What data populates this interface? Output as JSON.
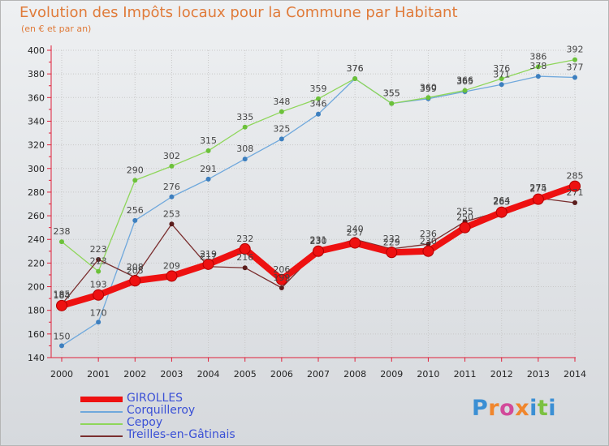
{
  "header": {
    "title": "Evolution des Impôts locaux pour la Commune par Habitant",
    "subtitle": "(en € et par an)"
  },
  "logo": {
    "text": "Proxiti",
    "letter_colors": [
      "#3b8fd4",
      "#f0862d",
      "#d24a9a",
      "#f0862d",
      "#3b8fd4",
      "#7cc142",
      "#3b8fd4"
    ]
  },
  "colors": {
    "axis": "#e0203a",
    "grid": "#c8c8c8",
    "tick_text": "#222222",
    "value_text": "#444444"
  },
  "chart_data": {
    "type": "line",
    "title": "Evolution des Impôts locaux pour la Commune par Habitant",
    "subtitle": "(en € et par an)",
    "x": [
      "2000",
      "2001",
      "2002",
      "2003",
      "2004",
      "2005",
      "2006",
      "2007",
      "2008",
      "2009",
      "2010",
      "2011",
      "2012",
      "2013",
      "2014"
    ],
    "ylim": [
      140,
      400
    ],
    "yticks": [
      140,
      160,
      180,
      200,
      220,
      240,
      260,
      280,
      300,
      320,
      340,
      360,
      380,
      400
    ],
    "grid": true,
    "legend_position": "bottom-left",
    "series": [
      {
        "name": "GIROLLES",
        "color": "#ee1111",
        "marker_color": "#ee1111",
        "values": [
          184,
          193,
          205,
          209,
          219,
          232,
          206,
          230,
          237,
          229,
          230,
          250,
          263,
          274,
          285
        ]
      },
      {
        "name": "Corquilleroy",
        "color": "#6fa8dc",
        "marker_color": "#3d7fbf",
        "values": [
          150,
          170,
          256,
          276,
          291,
          308,
          325,
          346,
          376,
          355,
          359,
          365,
          371,
          378,
          377
        ]
      },
      {
        "name": "Cepoy",
        "color": "#8ed65a",
        "marker_color": "#6cc13a",
        "values": [
          238,
          213,
          290,
          302,
          315,
          335,
          348,
          359,
          376,
          355,
          360,
          366,
          376,
          386,
          392
        ]
      },
      {
        "name": "Treilles-en-Gâtinais",
        "color": "#7a2e2e",
        "marker_color": "#5a1c1c",
        "values": [
          185,
          223,
          208,
          253,
          217,
          216,
          199,
          231,
          240,
          232,
          236,
          255,
          264,
          275,
          271
        ]
      }
    ]
  }
}
